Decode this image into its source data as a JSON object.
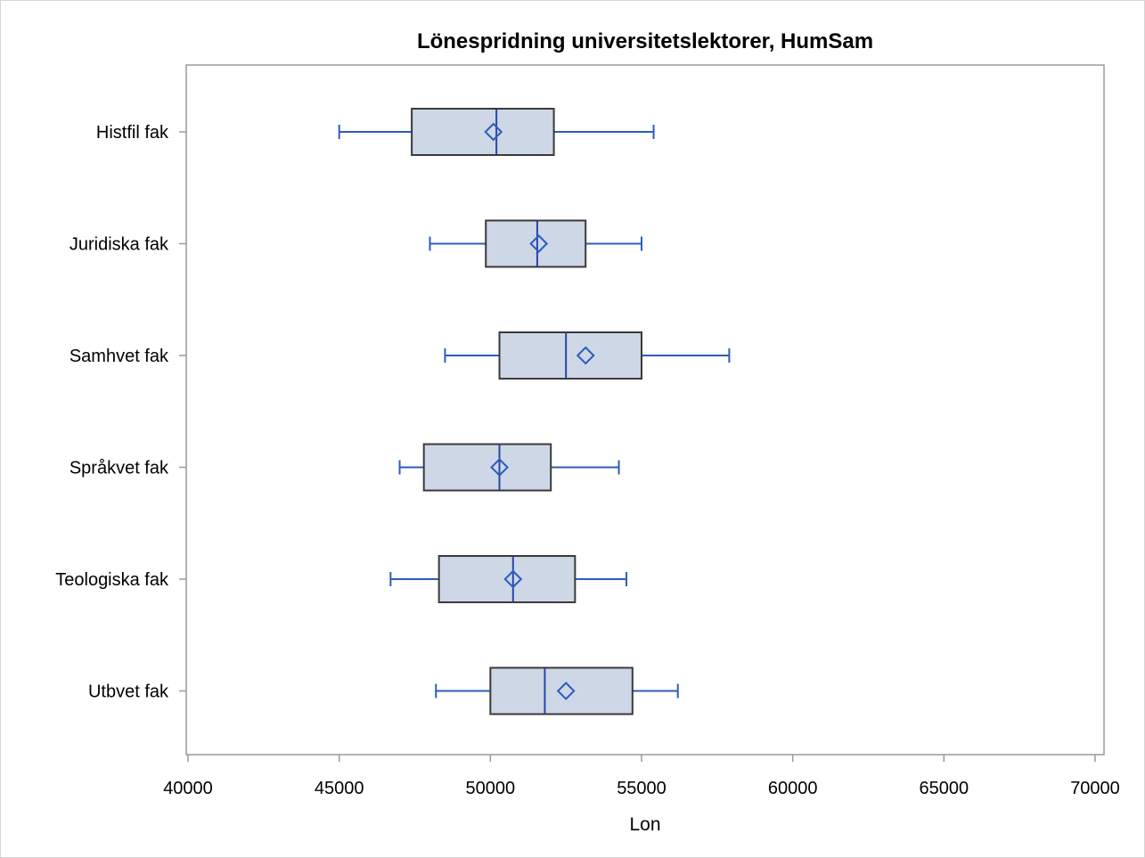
{
  "chart_data": {
    "type": "boxplot",
    "orientation": "horizontal",
    "title": "Lönespridning universitetslektorer, HumSam",
    "xlabel": "Lon",
    "ylabel": "",
    "xlim": [
      40000,
      70000
    ],
    "xticks": [
      "40000",
      "45000",
      "50000",
      "55000",
      "60000",
      "65000",
      "70000"
    ],
    "categories": [
      "Histfil fak",
      "Juridiska fak",
      "Samhvet fak",
      "Språkvet fak",
      "Teologiska fak",
      "Utbvet fak"
    ],
    "series": [
      {
        "category": "Histfil fak",
        "whisker_low": 45000,
        "q1": 47400,
        "median": 50200,
        "mean": 50100,
        "q3": 52100,
        "whisker_high": 55400
      },
      {
        "category": "Juridiska fak",
        "whisker_low": 48000,
        "q1": 49850,
        "median": 51550,
        "mean": 51600,
        "q3": 53150,
        "whisker_high": 55000
      },
      {
        "category": "Samhvet fak",
        "whisker_low": 48500,
        "q1": 50300,
        "median": 52500,
        "mean": 53150,
        "q3": 55000,
        "whisker_high": 57900
      },
      {
        "category": "Språkvet fak",
        "whisker_low": 47000,
        "q1": 47800,
        "median": 50300,
        "mean": 50300,
        "q3": 52000,
        "whisker_high": 54250
      },
      {
        "category": "Teologiska fak",
        "whisker_low": 46700,
        "q1": 48300,
        "median": 50750,
        "mean": 50750,
        "q3": 52800,
        "whisker_high": 54500
      },
      {
        "category": "Utbvet fak",
        "whisker_low": 48200,
        "q1": 50000,
        "median": 51800,
        "mean": 52500,
        "q3": 54700,
        "whisker_high": 56200
      }
    ],
    "colors": {
      "box_fill": "#cdd7e6",
      "box_border": "#3a3a3a",
      "whisker": "#2d5cbf",
      "median": "#2747a8",
      "mean_marker": "#2d5cbf",
      "plot_border": "#9a9a9a"
    },
    "grid": false,
    "legend": "none"
  }
}
